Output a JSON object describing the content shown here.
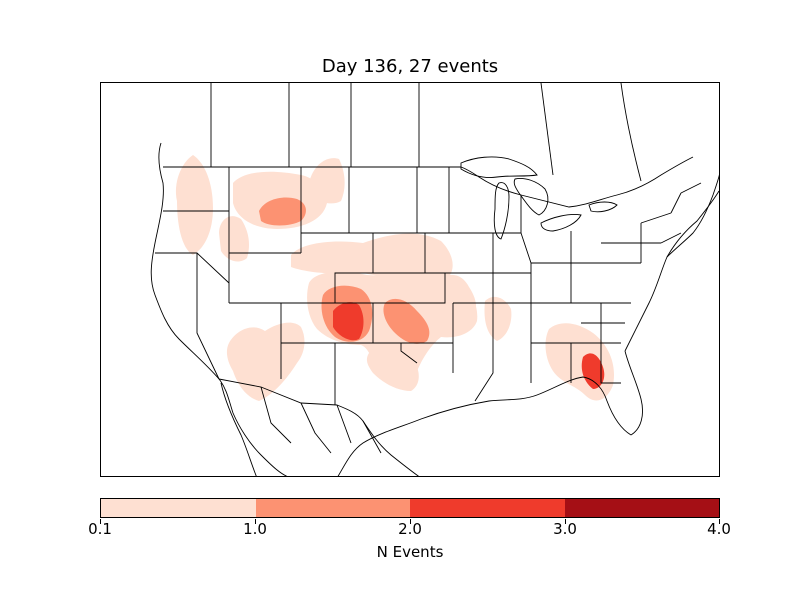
{
  "title": "Day 136, 27 events",
  "map": {
    "region": "continental-us-and-southern-canada",
    "boundaries": [
      "coastline",
      "country-border",
      "state-borders",
      "province-borders"
    ],
    "fill_regions": [
      {
        "area": "eastern-washington",
        "level": 0.1
      },
      {
        "area": "northern-idaho",
        "level": 0.1
      },
      {
        "area": "central-montana",
        "level": 1.0
      },
      {
        "area": "northeastern-montana",
        "level": 0.1
      },
      {
        "area": "southern-wyoming-nebraska",
        "level": 0.1
      },
      {
        "area": "southeastern-colorado",
        "level": 2.0
      },
      {
        "area": "western-oklahoma-kansas",
        "level": 1.0
      },
      {
        "area": "arizona-new-mexico",
        "level": 0.1
      },
      {
        "area": "north-texas",
        "level": 0.1
      },
      {
        "area": "eastern-kansas-missouri",
        "level": 0.1
      },
      {
        "area": "arkansas-mississippi",
        "level": 0.1
      },
      {
        "area": "alabama-georgia-florida",
        "level": 0.1
      },
      {
        "area": "north-florida",
        "level": 2.0
      }
    ]
  },
  "colorbar": {
    "label": "N Events",
    "ticks": [
      "0.1",
      "1.0",
      "2.0",
      "3.0",
      "4.0"
    ],
    "colors": [
      "#fee0d2",
      "#fc9272",
      "#ef3b2c",
      "#a50f15"
    ]
  }
}
